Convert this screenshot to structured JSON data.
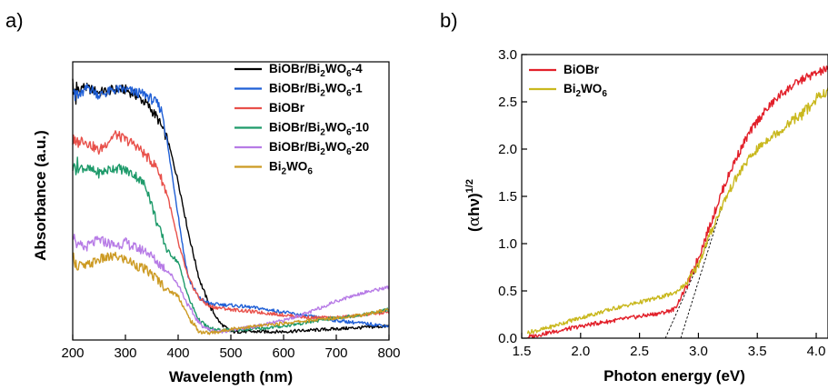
{
  "chart_data": [
    {
      "type": "line",
      "panel_label": "a)",
      "xlabel": "Wavelength (nm)",
      "ylabel": "Absorbance (a.u.)",
      "xlim": [
        200,
        800
      ],
      "ylim": [
        0,
        1
      ],
      "x_ticks": [
        "200",
        "300",
        "400",
        "500",
        "600",
        "700",
        "800"
      ],
      "y_ticks_shown": false,
      "legend_position": "top-right",
      "series": [
        {
          "name": "BiOBr/Bi2WO6-4",
          "legend": {
            "main": "BiOBr/Bi",
            "sub1": "2",
            "mid": "WO",
            "sub2": "6",
            "tail": "-4"
          },
          "color": "#000000",
          "x": [
            200,
            220,
            250,
            280,
            300,
            320,
            340,
            360,
            380,
            400,
            420,
            440,
            460,
            480,
            500,
            550,
            600,
            650,
            700,
            750,
            800
          ],
          "y": [
            0.9,
            0.91,
            0.89,
            0.9,
            0.9,
            0.88,
            0.85,
            0.8,
            0.72,
            0.57,
            0.38,
            0.22,
            0.12,
            0.06,
            0.03,
            0.03,
            0.03,
            0.035,
            0.04,
            0.045,
            0.05
          ]
        },
        {
          "name": "BiOBr/Bi2WO6-1",
          "legend": {
            "main": "BiOBr/Bi",
            "sub1": "2",
            "mid": "WO",
            "sub2": "6",
            "tail": "-1"
          },
          "color": "#1f5fd6",
          "x": [
            200,
            210,
            230,
            250,
            280,
            300,
            320,
            340,
            360,
            370,
            380,
            400,
            410,
            420,
            440,
            460,
            500,
            550,
            600,
            650,
            700,
            750,
            800
          ],
          "y": [
            0.9,
            0.87,
            0.91,
            0.88,
            0.9,
            0.9,
            0.89,
            0.88,
            0.85,
            0.82,
            0.7,
            0.45,
            0.32,
            0.22,
            0.15,
            0.13,
            0.125,
            0.115,
            0.1,
            0.085,
            0.07,
            0.06,
            0.05
          ]
        },
        {
          "name": "BiOBr",
          "legend": {
            "main": "BiOBr",
            "sub1": "",
            "mid": "",
            "sub2": "",
            "tail": ""
          },
          "color": "#e8504a",
          "x": [
            200,
            220,
            250,
            280,
            300,
            320,
            340,
            360,
            380,
            400,
            420,
            440,
            460,
            500,
            550,
            600,
            650,
            700,
            750,
            800
          ],
          "y": [
            0.72,
            0.72,
            0.68,
            0.74,
            0.72,
            0.7,
            0.66,
            0.62,
            0.52,
            0.35,
            0.22,
            0.15,
            0.12,
            0.11,
            0.1,
            0.09,
            0.08,
            0.08,
            0.09,
            0.1
          ]
        },
        {
          "name": "BiOBr/Bi2WO6-10",
          "legend": {
            "main": "BiOBr/Bi",
            "sub1": "2",
            "mid": "WO",
            "sub2": "6",
            "tail": "-10"
          },
          "color": "#1e9a6a",
          "x": [
            200,
            220,
            250,
            280,
            300,
            320,
            340,
            360,
            380,
            400,
            420,
            440,
            460,
            480,
            500,
            550,
            600,
            650,
            700,
            750,
            800
          ],
          "y": [
            0.62,
            0.62,
            0.6,
            0.62,
            0.61,
            0.59,
            0.55,
            0.42,
            0.32,
            0.28,
            0.15,
            0.07,
            0.04,
            0.035,
            0.035,
            0.04,
            0.05,
            0.065,
            0.08,
            0.09,
            0.11
          ]
        },
        {
          "name": "BiOBr/Bi2WO6-20",
          "legend": {
            "main": "BiOBr/Bi",
            "sub1": "2",
            "mid": "WO",
            "sub2": "6",
            "tail": "-20"
          },
          "color": "#b77be6",
          "x": [
            200,
            220,
            250,
            280,
            300,
            320,
            340,
            360,
            380,
            400,
            420,
            440,
            460,
            480,
            500,
            550,
            600,
            650,
            700,
            750,
            800
          ],
          "y": [
            0.38,
            0.33,
            0.36,
            0.34,
            0.35,
            0.33,
            0.32,
            0.28,
            0.25,
            0.2,
            0.12,
            0.06,
            0.035,
            0.03,
            0.035,
            0.05,
            0.07,
            0.1,
            0.14,
            0.17,
            0.19
          ]
        },
        {
          "name": "Bi2WO6",
          "legend": {
            "main": "Bi",
            "sub1": "2",
            "mid": "WO",
            "sub2": "6",
            "tail": ""
          },
          "color": "#cc9a22",
          "x": [
            200,
            220,
            250,
            280,
            300,
            320,
            340,
            360,
            380,
            400,
            420,
            440,
            460,
            480,
            500,
            550,
            600,
            650,
            700,
            750,
            800
          ],
          "y": [
            0.3,
            0.26,
            0.29,
            0.3,
            0.29,
            0.27,
            0.25,
            0.22,
            0.18,
            0.16,
            0.08,
            0.03,
            0.025,
            0.03,
            0.04,
            0.05,
            0.06,
            0.07,
            0.08,
            0.09,
            0.11
          ]
        }
      ]
    },
    {
      "type": "line",
      "panel_label": "b)",
      "xlabel": "Photon energy (eV)",
      "ylabel": {
        "open": "(",
        "alpha": "α",
        "body": "hν)",
        "sup": "1/2"
      },
      "xlim": [
        1.5,
        4.1
      ],
      "ylim": [
        0.0,
        3.0
      ],
      "x_ticks": [
        "1.5",
        "2.0",
        "2.5",
        "3.0",
        "3.5",
        "4.0"
      ],
      "y_ticks": [
        "0.0",
        "0.5",
        "1.0",
        "1.5",
        "2.0",
        "2.5",
        "3.0"
      ],
      "legend_position": "top-left",
      "series": [
        {
          "name": "BiOBr",
          "legend": {
            "main": "BiOBr",
            "sub1": "",
            "mid": "",
            "sub2": ""
          },
          "color": "#e2202a",
          "x": [
            1.55,
            1.7,
            1.9,
            2.1,
            2.3,
            2.5,
            2.7,
            2.8,
            2.9,
            3.0,
            3.1,
            3.2,
            3.3,
            3.4,
            3.5,
            3.6,
            3.7,
            3.8,
            3.9,
            4.0,
            4.1
          ],
          "y": [
            0.01,
            0.05,
            0.1,
            0.15,
            0.19,
            0.23,
            0.27,
            0.31,
            0.55,
            0.85,
            1.2,
            1.55,
            1.85,
            2.1,
            2.3,
            2.45,
            2.58,
            2.67,
            2.75,
            2.8,
            2.85
          ]
        },
        {
          "name": "Bi2WO6",
          "legend": {
            "main": "Bi",
            "sub1": "2",
            "mid": "WO",
            "sub2": "6"
          },
          "color": "#c9b81e",
          "x": [
            1.55,
            1.7,
            1.9,
            2.1,
            2.3,
            2.5,
            2.7,
            2.8,
            2.9,
            3.0,
            3.1,
            3.2,
            3.3,
            3.4,
            3.5,
            3.6,
            3.7,
            3.8,
            3.9,
            4.0,
            4.1
          ],
          "y": [
            0.06,
            0.1,
            0.18,
            0.25,
            0.32,
            0.38,
            0.44,
            0.48,
            0.58,
            0.78,
            1.1,
            1.4,
            1.65,
            1.85,
            2.0,
            2.12,
            2.2,
            2.3,
            2.4,
            2.52,
            2.62
          ]
        }
      ],
      "tangent_lines": [
        {
          "x": [
            2.72,
            3.1
          ],
          "y": [
            0.0,
            1.07
          ]
        },
        {
          "x": [
            2.85,
            3.2
          ],
          "y": [
            0.0,
            1.4
          ]
        }
      ]
    }
  ]
}
